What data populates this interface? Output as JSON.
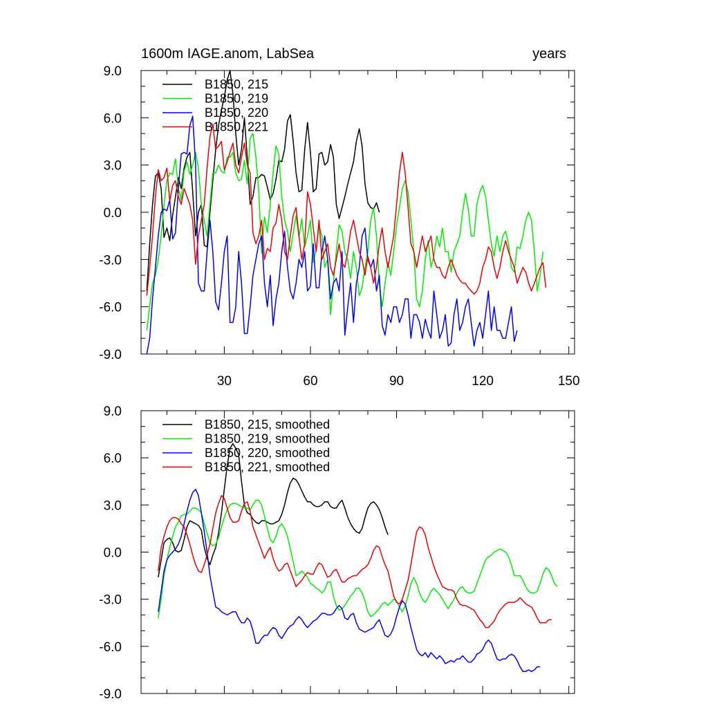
{
  "chart_data": [
    {
      "type": "line",
      "title": "1600m IAGE.anom, LabSea",
      "right_label": "years",
      "xlim": [
        1,
        152
      ],
      "ylim": [
        -9,
        9
      ],
      "x_ticks": [
        30,
        60,
        90,
        120,
        150
      ],
      "y_ticks": [
        "9.0",
        "6.0",
        "3.0",
        "0.0",
        "-3.0",
        "-6.0",
        "-9.0"
      ],
      "y_tick_values": [
        9,
        6,
        3,
        0,
        -3,
        -6,
        -9
      ],
      "show_x_tick_labels": true,
      "legend": [
        "B1850, 215",
        "B1850, 219",
        "B1850, 220",
        "B1850, 221"
      ],
      "series": [
        {
          "name": "B1850, 215",
          "color": "#000000",
          "x_start": 3,
          "values": [
            -5,
            -2,
            0.5,
            2.3,
            2.5,
            1.5,
            -1.6,
            -1,
            -1.8,
            -0.2,
            1,
            2.2,
            1.5,
            2.8,
            3.5,
            3.8,
            1.3,
            -1.5,
            0,
            0.5,
            -2.1,
            -2.2,
            0,
            2,
            4,
            5.5,
            6.5,
            7.3,
            8.4,
            9,
            7.5,
            5,
            3,
            4,
            6,
            3.5,
            0.5,
            1,
            2.2,
            2.2,
            2.4,
            2.3,
            1.6,
            0.8,
            1.2,
            2.1,
            3.3,
            3.2,
            4,
            5.8,
            6.2,
            4.5,
            2.5,
            1.3,
            1.4,
            4,
            5.7,
            3.8,
            1.3,
            1.5,
            3.7,
            3.8,
            3,
            3.2,
            4.3,
            3.5,
            0.5,
            -0.4,
            0.3,
            1,
            1.8,
            2.5,
            3.2,
            4.5,
            5.3,
            4.2,
            1.8,
            0.6,
            0.3,
            0.2,
            0.6,
            0
          ]
        },
        {
          "name": "B1850, 219",
          "color": "#00ee00",
          "x_start": 3,
          "values": [
            -7.5,
            -6,
            -4.5,
            -4,
            -3,
            -1.5,
            0.5,
            2,
            2.5,
            2.4,
            3.4,
            1.5,
            0.8,
            2.6,
            3.2,
            2.4,
            3,
            3.8,
            2.8,
            0.5,
            -0.5,
            -1.5,
            0.5,
            2.5,
            2.5,
            3,
            2.6,
            2.5,
            3.5,
            3.5,
            3.8,
            2.5,
            2,
            2.1,
            3.3,
            1.8,
            4.7,
            5,
            3.5,
            1.4,
            -2.6,
            -0.3,
            -1.3,
            0.5,
            2.5,
            4.2,
            3.7,
            1,
            -0.5,
            -1.2,
            -2.5,
            -1.3,
            -0.2,
            -1.6,
            -0.4,
            -2.2,
            -1.5,
            -0.5,
            -3.2,
            -2.4,
            -0.8,
            -1.5,
            -3.5,
            -3,
            -6.5,
            -4.5,
            -2.5,
            -0.8,
            -1.2,
            -2.5,
            -3,
            -4.2,
            -2.5,
            -3.5,
            -5.3,
            -4.8,
            -3.5,
            -2.5,
            -0.5,
            0.3,
            -1.5,
            -4.5,
            -6,
            -4.5,
            -3.2,
            -4,
            -2.5,
            -0.8,
            0.3,
            1.5,
            2,
            1.3,
            -0.5,
            -2.5,
            -5.5,
            -6,
            -5,
            -3,
            -1.8,
            -3.5,
            -2.8,
            -1.5,
            -2.2,
            -1,
            -2.5,
            -2.5,
            -3.8,
            -2.5,
            -2,
            -1.5,
            0,
            1.2,
            0.2,
            -1.5,
            -1.5,
            0.5,
            1.3,
            1.7,
            1,
            -0.5,
            -2,
            -2.8,
            -1.5,
            -2.5,
            -1.5,
            -1.2,
            -2,
            -3.5,
            -3.8,
            -2.2,
            -2.3,
            -1.5,
            -0.5,
            0,
            -0.5,
            -2.5,
            -5,
            -4,
            -2.5
          ]
        },
        {
          "name": "B1850, 220",
          "color": "#0000ff",
          "x_start": 3,
          "values": [
            -9,
            -8,
            -5.5,
            -3.5,
            -1.5,
            0,
            0.2,
            0.1,
            0.8,
            -1.7,
            -1.3,
            1.5,
            3.7,
            3.8,
            3.7,
            5.5,
            6.1,
            3,
            -4.5,
            -5,
            -5,
            -2.5,
            -0.5,
            -2.5,
            -5.7,
            -6.2,
            -4.5,
            -2.5,
            -1.5,
            -7,
            -7,
            -6,
            -2.5,
            -4.5,
            -7.7,
            -7.7,
            -6,
            -4,
            -3,
            -2,
            -1.5,
            -4.5,
            -6,
            -4,
            -7.2,
            -5.5,
            -4.5,
            -2.5,
            -1.2,
            -3.5,
            -5,
            -5.5,
            -4.5,
            -3,
            -3.5,
            -2.5,
            -5,
            -4.7,
            -2,
            -4.8,
            -4.8,
            -2.5,
            -1.5,
            -3,
            -5.5,
            -4.5,
            -4.2,
            -5,
            -2.5,
            -7.8,
            -6,
            -4.5,
            -7,
            -4.5,
            -3.5,
            -1.5,
            -1,
            -3,
            -3.5,
            -3,
            -5,
            -4,
            -7.2,
            -7.8,
            -6.5,
            -7,
            -6,
            -6,
            -7,
            -6.5,
            -5.5,
            -5.5,
            -8,
            -6.5,
            -6.5,
            -7,
            -8,
            -6.8,
            -7.5,
            -8,
            -5,
            -6.5,
            -8,
            -7.5,
            -6.5,
            -8.5,
            -8.3,
            -6.5,
            -5.5,
            -7.5,
            -7,
            -6,
            -5.5,
            -7,
            -8.5,
            -7.5,
            -7,
            -8,
            -6.5,
            -5,
            -7.5,
            -6,
            -7.5,
            -7.5,
            -8,
            -8,
            -7,
            -6,
            -8.2,
            -7.5
          ]
        },
        {
          "name": "B1850, 221",
          "color": "#ee0000",
          "x_start": 3,
          "values": [
            -5.3,
            -3.5,
            -1.5,
            1,
            2.7,
            2,
            2.2,
            2.8,
            0.7,
            1.7,
            2,
            1,
            0.5,
            1.5,
            1,
            0.5,
            -0.5,
            -3.3,
            -1.5,
            -0.5,
            0.5,
            2.8,
            4.8,
            5.6,
            4,
            4.2,
            4.5,
            2.7,
            3.2,
            3.8,
            4.4,
            3,
            2.5,
            3.5,
            4.4,
            3,
            2.5,
            -1.3,
            -2,
            -1.5,
            -0.5,
            -3,
            -2.3,
            -2.5,
            -1,
            -0.7,
            0.5,
            -0.5,
            -2.5,
            -3,
            -1.5,
            -0.2,
            0.3,
            -1.5,
            -3,
            -2,
            1.3,
            0.5,
            -1,
            -2.5,
            -0.5,
            -3,
            -2.5,
            -2,
            -3.5,
            -4,
            -3,
            -2,
            -3.2,
            -3.5,
            -2.5,
            -1.2,
            -0.5,
            -1.5,
            -2.5,
            -3,
            -4,
            -2.8,
            -3.5,
            -4.5,
            -3.5,
            -2,
            -1,
            -2.5,
            -3.5,
            -2.5,
            -1.5,
            0.5,
            2.5,
            3.8,
            2.5,
            0.3,
            -2,
            -2.5,
            -3.5,
            -2.5,
            -1.5,
            -2.5,
            -2,
            -1.5,
            -3,
            -3.5,
            -3.5,
            -4,
            -4.2,
            -3.5,
            -3,
            -3.5,
            -4,
            -4.3,
            -4.5,
            -4.5,
            -4.8,
            -5,
            -5.2,
            -5,
            -4.5,
            -3.5,
            -3,
            -2.2,
            -2.5,
            -3.5,
            -4.2,
            -3.5,
            -2.5,
            -1.8,
            -2.5,
            -3,
            -3.5,
            -4.5,
            -4,
            -3.5,
            -3.8,
            -4.5,
            -5,
            -4.5,
            -4,
            -3.5,
            -3.2,
            -4.8
          ]
        }
      ]
    },
    {
      "type": "line",
      "title": "",
      "right_label": "",
      "xlim": [
        1,
        152
      ],
      "ylim": [
        -9,
        9
      ],
      "x_ticks": [
        30,
        60,
        90,
        120,
        150
      ],
      "y_ticks": [
        "9.0",
        "6.0",
        "3.0",
        "0.0",
        "-3.0",
        "-6.0",
        "-9.0"
      ],
      "y_tick_values": [
        9,
        6,
        3,
        0,
        -3,
        -6,
        -9
      ],
      "show_x_tick_labels": false,
      "legend": [
        "B1850, 215, smoothed",
        "B1850, 219, smoothed",
        "B1850, 220, smoothed",
        "B1850, 221, smoothed"
      ],
      "series": [
        {
          "name": "B1850, 215, smoothed",
          "color": "#000000",
          "x_start": 7,
          "values": [
            -1.6,
            -0.5,
            0.6,
            0.8,
            0.9,
            0.6,
            0.1,
            0,
            0.1,
            0.8,
            1.6,
            2,
            1.9,
            1.8,
            1.7,
            1.4,
            0.3,
            -0.4,
            -0.8,
            -0.2,
            0.3,
            1.2,
            2.5,
            4,
            5.5,
            6.6,
            6.9,
            6.6,
            6.2,
            4.5,
            3,
            2.5,
            2.4,
            2.1,
            1.9,
            1.8,
            2,
            2,
            1.9,
            1.8,
            1.8,
            1.9,
            2,
            2.4,
            3,
            3.8,
            4.4,
            4.7,
            4.6,
            4.3,
            3.9,
            3.5,
            3.2,
            3.2,
            3,
            2.9,
            2.9,
            3,
            3.2,
            3.2,
            2.9,
            2.8,
            2.8,
            3.1,
            3.3,
            2.8,
            2.2,
            1.8,
            1.5,
            1.3,
            1.2,
            1.5,
            2.2,
            2.8,
            3.1,
            3.2,
            3,
            2.7,
            2.2,
            1.6,
            1.1
          ]
        },
        {
          "name": "B1850, 219, smoothed",
          "color": "#00ee00",
          "x_start": 7,
          "values": [
            -4.2,
            -3,
            -1.5,
            -0.5,
            0.3,
            1,
            1.6,
            1.9,
            2.3,
            2.4,
            2.4,
            2.6,
            2.8,
            2.8,
            2.7,
            2.5,
            1.8,
            1.2,
            0.6,
            0.4,
            0.5,
            0.9,
            1.6,
            2.2,
            2.7,
            3,
            3.1,
            3.1,
            3,
            2.9,
            2.8,
            2.8,
            2.7,
            3,
            3.3,
            3.3,
            3,
            2.3,
            1.5,
            0.8,
            0.6,
            1,
            1.6,
            1.8,
            1.5,
            1,
            0.2,
            -0.6,
            -1.5,
            -1.4,
            -1.2,
            -1.4,
            -1.6,
            -2,
            -2.1,
            -2.3,
            -2.4,
            -2.6,
            -2.4,
            -1.9,
            -1.9,
            -2.8,
            -3.4,
            -3.7,
            -3.6,
            -3.4,
            -3.1,
            -2.8,
            -2.6,
            -2.3,
            -2.3,
            -2.6,
            -3.1,
            -3.8,
            -4.1,
            -4,
            -3.8,
            -3.6,
            -3.3,
            -3.2,
            -3.4,
            -3.2,
            -3,
            -3.1,
            -3.5,
            -3.8,
            -3.4,
            -2.8,
            -2,
            -1.6,
            -2,
            -2.6,
            -3,
            -3.2,
            -2.9,
            -2.5,
            -2.3,
            -2.5,
            -2.7,
            -3,
            -3.3,
            -3.6,
            -3.3,
            -3,
            -2.6,
            -2.3,
            -2.2,
            -2.5,
            -2.6,
            -2.6,
            -2.5,
            -2,
            -1.5,
            -1,
            -0.5,
            -0.3,
            -0.2,
            0,
            0.1,
            0.2,
            0.1,
            0,
            -0.3,
            -0.8,
            -1.5,
            -1.5,
            -1.5,
            -1.8,
            -2.2,
            -2.5,
            -2.6,
            -2.6,
            -2.5,
            -2,
            -1.4,
            -1,
            -1.1,
            -1.5,
            -2,
            -2.2
          ]
        },
        {
          "name": "B1850, 220, smoothed",
          "color": "#0000ff",
          "x_start": 7,
          "values": [
            -3.8,
            -2.5,
            -1.2,
            -0.5,
            -0.2,
            0,
            0.2,
            0.5,
            1,
            1.8,
            2.6,
            3.3,
            3.8,
            4,
            3.6,
            2.5,
            1.3,
            0,
            -1.5,
            -2.5,
            -3.5,
            -3.6,
            -3.8,
            -3.9,
            -4,
            -3.9,
            -3.8,
            -3.8,
            -4.2,
            -4.5,
            -4.5,
            -4.2,
            -4.4,
            -5,
            -5.8,
            -5.8,
            -5.5,
            -5.3,
            -5.3,
            -5,
            -4.8,
            -4.9,
            -5.3,
            -5.5,
            -5.2,
            -4.9,
            -4.7,
            -4.6,
            -4.3,
            -4.1,
            -4.3,
            -4.6,
            -4.8,
            -4.6,
            -4.4,
            -4.3,
            -4.1,
            -3.9,
            -3.9,
            -4,
            -4,
            -3.9,
            -3.6,
            -3.4,
            -3.6,
            -4.2,
            -4.3,
            -4,
            -3.9,
            -4.5,
            -4.9,
            -5,
            -5.1,
            -5,
            -4.9,
            -4.8,
            -4.5,
            -4.3,
            -4.8,
            -5.3,
            -5.4,
            -5.2,
            -4.8,
            -4.1,
            -3.5,
            -3.1,
            -3.3,
            -4,
            -4.8,
            -5.5,
            -6.2,
            -6.5,
            -6.6,
            -6.4,
            -6.7,
            -6.4,
            -6.6,
            -6.8,
            -6.6,
            -6.8,
            -7.1,
            -7,
            -6.9,
            -7,
            -6.8,
            -6.8,
            -6.6,
            -6.8,
            -7,
            -7,
            -6.8,
            -6.5,
            -6.4,
            -6.2,
            -5.8,
            -5.6,
            -5.8,
            -6.3,
            -6.8,
            -6.9,
            -6.8,
            -6.8,
            -6.6,
            -6.5,
            -6.6,
            -6.9,
            -7.3,
            -7.6,
            -7.6,
            -7.5,
            -7.6,
            -7.5,
            -7.3,
            -7.3
          ]
        },
        {
          "name": "B1850, 221, smoothed",
          "color": "#ee0000",
          "x_start": 7,
          "values": [
            -1.2,
            0.3,
            1,
            1.6,
            2,
            2.2,
            2.2,
            2.1,
            1.8,
            1.6,
            1.1,
            0.5,
            -0.2,
            -0.8,
            -1.2,
            -1.3,
            -0.8,
            -0.2,
            0.5,
            1.5,
            2.5,
            3.1,
            3.6,
            3.4,
            2.8,
            2.2,
            1.9,
            1.9,
            2,
            2.6,
            3.1,
            3.2,
            2.6,
            1.6,
            1.1,
            0.6,
            0.1,
            -0.4,
            0,
            0.3,
            -0.4,
            -0.9,
            -1.2,
            -1.1,
            -0.8,
            -0.7,
            -1.2,
            -1.7,
            -2.2,
            -2,
            -1.8,
            -1.5,
            -1.3,
            -1.4,
            -1.4,
            -1,
            -0.7,
            -0.8,
            -1.2,
            -1.6,
            -1.5,
            -1.2,
            -1.1,
            -1.5,
            -1.9,
            -1.9,
            -1.7,
            -1.6,
            -1.5,
            -1.5,
            -1.3,
            -1.1,
            -1,
            -0.8,
            -0.4,
            0.1,
            0.4,
            0.3,
            -0.3,
            -0.8,
            -1.2,
            -2,
            -2.8,
            -3.2,
            -3.3,
            -3,
            -2.4,
            -1.8,
            -0.8,
            0.3,
            1.3,
            1.6,
            1.5,
            1.1,
            0.3,
            -0.3,
            -0.9,
            -1.4,
            -1.8,
            -2.2,
            -2.3,
            -2.4,
            -2.4,
            -2.5,
            -3,
            -3.3,
            -3.4,
            -3.4,
            -3.5,
            -3.6,
            -3.7,
            -4,
            -4.3,
            -4.5,
            -4.8,
            -4.8,
            -4.6,
            -4.4,
            -4,
            -3.7,
            -3.5,
            -3.3,
            -3.2,
            -3.2,
            -3.2,
            -3.1,
            -2.9,
            -3.1,
            -3.3,
            -3.4,
            -3.5,
            -3.8,
            -4.2,
            -4.5,
            -4.5,
            -4.5,
            -4.3,
            -4.3
          ]
        }
      ]
    }
  ]
}
